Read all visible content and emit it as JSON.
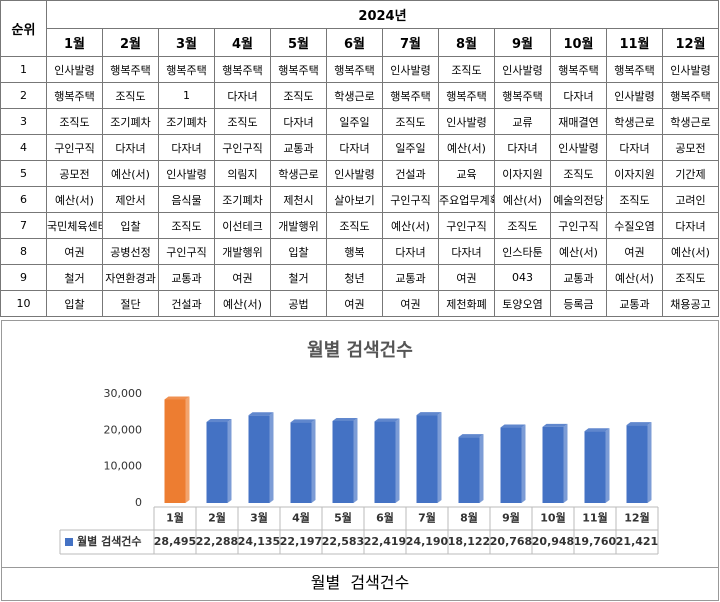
{
  "table": {
    "header": {
      "rank": "순위",
      "year": "2024년",
      "months": [
        "1월",
        "2월",
        "3월",
        "4월",
        "5월",
        "6월",
        "7월",
        "8월",
        "9월",
        "10월",
        "11월",
        "12월"
      ]
    },
    "rows": [
      [
        "1",
        "인사발령",
        "행복주택",
        "행복주택",
        "행복주택",
        "행복주택",
        "행복주택",
        "인사발령",
        "조직도",
        "인사발령",
        "행복주택",
        "행복주택",
        "인사발령"
      ],
      [
        "2",
        "행복주택",
        "조직도",
        "1",
        "다자녀",
        "조직도",
        "학생근로",
        "행복주택",
        "행복주택",
        "행복주택",
        "다자녀",
        "인사발령",
        "행복주택"
      ],
      [
        "3",
        "조직도",
        "조기폐차",
        "조기폐차",
        "조직도",
        "다자녀",
        "일주일",
        "조직도",
        "인사발령",
        "교류",
        "재매결연",
        "학생근로",
        "학생근로"
      ],
      [
        "4",
        "구인구직",
        "다자녀",
        "다자녀",
        "구인구직",
        "교통과",
        "다자녀",
        "일주일",
        "예산(서)",
        "다자녀",
        "인사발령",
        "다자녀",
        "공모전"
      ],
      [
        "5",
        "공모전",
        "예산(서)",
        "인사발령",
        "의림지",
        "학생근로",
        "인사발령",
        "건설과",
        "교육",
        "이자지원",
        "조직도",
        "이자지원",
        "기간제"
      ],
      [
        "6",
        "예산(서)",
        "제안서",
        "음식물",
        "조기폐차",
        "제천시",
        "살아보기",
        "구인구직",
        "주요업무계획",
        "예산(서)",
        "예술의전당",
        "조직도",
        "고려인"
      ],
      [
        "7",
        "국민체육센터",
        "입찰",
        "조직도",
        "이선테크",
        "개발행위",
        "조직도",
        "예산(서)",
        "구인구직",
        "조직도",
        "구인구직",
        "수질오염",
        "다자녀"
      ],
      [
        "8",
        "여권",
        "공병선정",
        "구인구직",
        "개발행위",
        "입찰",
        "행복",
        "다자녀",
        "다자녀",
        "인스타툰",
        "예산(서)",
        "여권",
        "예산(서)"
      ],
      [
        "9",
        "철거",
        "자연환경과",
        "교통과",
        "여권",
        "철거",
        "청년",
        "교통과",
        "여권",
        "043",
        "교통과",
        "예산(서)",
        "조직도"
      ],
      [
        "10",
        "입찰",
        "절단",
        "건설과",
        "예산(서)",
        "공법",
        "여권",
        "여권",
        "제천화폐",
        "토양오염",
        "등록금",
        "교통과",
        "채용공고"
      ]
    ]
  },
  "chart_data": {
    "type": "bar",
    "title": "월별 검색건수",
    "categories": [
      "1월",
      "2월",
      "3월",
      "4월",
      "5월",
      "6월",
      "7월",
      "8월",
      "9월",
      "10월",
      "11월",
      "12월"
    ],
    "series": [
      {
        "name": "월별 검색건수",
        "color": "#4472c4",
        "colors": [
          "#ed7d31",
          "#4472c4",
          "#4472c4",
          "#4472c4",
          "#4472c4",
          "#4472c4",
          "#4472c4",
          "#4472c4",
          "#4472c4",
          "#4472c4",
          "#4472c4",
          "#4472c4"
        ],
        "values": [
          28495,
          22288,
          24135,
          22197,
          22583,
          22419,
          24190,
          18122,
          20768,
          20948,
          19760,
          21421
        ],
        "value_labels": [
          "28,495",
          "22,288",
          "24,135",
          "22,197",
          "22,583",
          "22,419",
          "24,190",
          "18,122",
          "20,768",
          "20,948",
          "19,760",
          "21,421"
        ]
      }
    ],
    "ylim": [
      0,
      30000
    ],
    "yticks": [
      0,
      {
        "value": 10000,
        "label": "10,000"
      },
      {
        "value": 20000,
        "label": "20,000"
      },
      {
        "value": 30000,
        "label": "30,000"
      }
    ],
    "grid": false
  },
  "caption": "월별  검색건수"
}
